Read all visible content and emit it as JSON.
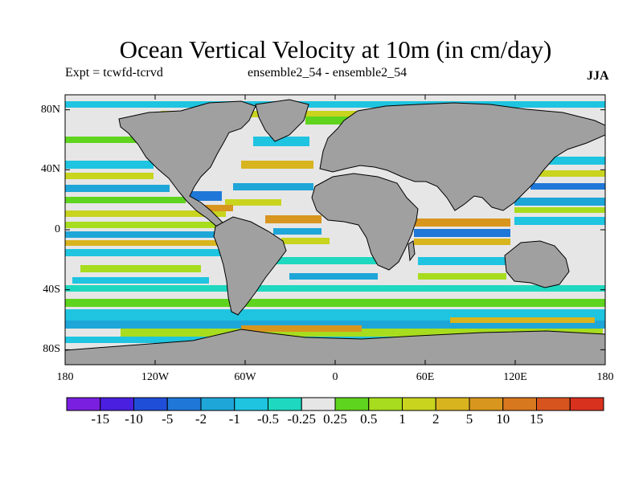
{
  "title": "Ocean Vertical Velocity at 10m (in cm/day)",
  "experiment": "Expt = tcwfd-tcrvd",
  "ensemble": "ensemble2_54 - ensemble2_54",
  "season": "JJA",
  "map": {
    "land_color": "#a0a0a0",
    "ocean_neutral_color": "#e6e6e6",
    "lon_range": [
      -180,
      180
    ],
    "lat_range": [
      -90,
      90
    ],
    "lat_ticks": [
      {
        "value": 80,
        "label": "80N"
      },
      {
        "value": 40,
        "label": "40N"
      },
      {
        "value": 0,
        "label": "0"
      },
      {
        "value": -40,
        "label": "40S"
      },
      {
        "value": -80,
        "label": "80S"
      }
    ],
    "lon_ticks": [
      {
        "value": -180,
        "label": "180"
      },
      {
        "value": -120,
        "label": "120W"
      },
      {
        "value": -60,
        "label": "60W"
      },
      {
        "value": 0,
        "label": "0"
      },
      {
        "value": 60,
        "label": "60E"
      },
      {
        "value": 120,
        "label": "120E"
      },
      {
        "value": 180,
        "label": "180"
      }
    ]
  },
  "colorbar": {
    "colors": [
      "#7a1fe0",
      "#4b1fe0",
      "#1f4fd8",
      "#1f78d8",
      "#1ea6d8",
      "#1ec4e0",
      "#1ed8c0",
      "#e6e6e6",
      "#5fd41e",
      "#a8dc1e",
      "#c8d41e",
      "#d8b41e",
      "#d8961e",
      "#d8781e",
      "#d8541e",
      "#d8321e"
    ],
    "labels": [
      "-15",
      "-10",
      "-5",
      "-2",
      "-1",
      "-0.5",
      "-0.25",
      "0.25",
      "0.5",
      "1",
      "2",
      "5",
      "10",
      "15"
    ]
  }
}
